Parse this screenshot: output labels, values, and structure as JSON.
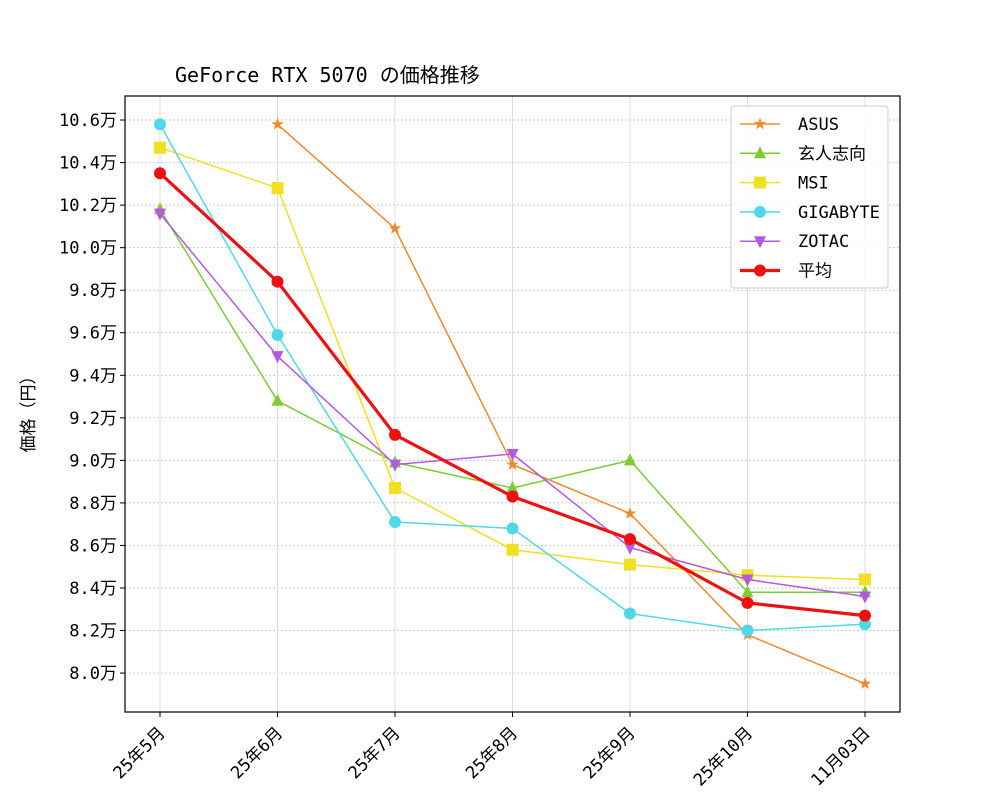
{
  "chart_data": {
    "type": "line",
    "title": "GeForce RTX 5070 の価格推移",
    "y_label": "価格（円）",
    "categories": [
      "25年5月",
      "25年6月",
      "25年7月",
      "25年8月",
      "25年9月",
      "25年10月",
      "11月03日"
    ],
    "ylim": [
      78170,
      107130
    ],
    "yticks": [
      {
        "value": 80000,
        "label": "8.0万"
      },
      {
        "value": 82000,
        "label": "8.2万"
      },
      {
        "value": 84000,
        "label": "8.4万"
      },
      {
        "value": 86000,
        "label": "8.6万"
      },
      {
        "value": 88000,
        "label": "8.8万"
      },
      {
        "value": 90000,
        "label": "9.0万"
      },
      {
        "value": 92000,
        "label": "9.2万"
      },
      {
        "value": 94000,
        "label": "9.4万"
      },
      {
        "value": 96000,
        "label": "9.6万"
      },
      {
        "value": 98000,
        "label": "9.8万"
      },
      {
        "value": 100000,
        "label": "10.0万"
      },
      {
        "value": 102000,
        "label": "10.2万"
      },
      {
        "value": 104000,
        "label": "10.4万"
      },
      {
        "value": 106000,
        "label": "10.6万"
      }
    ],
    "grid": true,
    "legend": "upper right",
    "series": [
      {
        "name": "ASUS",
        "color": "#ee8a2a",
        "marker": "star",
        "values": [
          null,
          105800,
          100900,
          89800,
          87500,
          81800,
          79500
        ]
      },
      {
        "name": "玄人志向",
        "color": "#7ccd32",
        "marker": "triangle-up",
        "values": [
          101800,
          92800,
          89900,
          88700,
          90000,
          83800,
          83800
        ]
      },
      {
        "name": "MSI",
        "color": "#f0e020",
        "marker": "square",
        "values": [
          104700,
          102800,
          88700,
          85800,
          85100,
          84600,
          84400
        ]
      },
      {
        "name": "GIGABYTE",
        "color": "#50d8e8",
        "marker": "circle",
        "values": [
          105800,
          95900,
          87100,
          86800,
          82800,
          82000,
          82300
        ]
      },
      {
        "name": "ZOTAC",
        "color": "#b45ae0",
        "marker": "triangle-down",
        "values": [
          101600,
          94900,
          89800,
          90300,
          85900,
          84400,
          83600
        ]
      },
      {
        "name": "平均",
        "color": "#ee1111",
        "marker": "circle",
        "bold": true,
        "values": [
          103500,
          98400,
          91200,
          88300,
          86300,
          83300,
          82700
        ]
      }
    ]
  }
}
